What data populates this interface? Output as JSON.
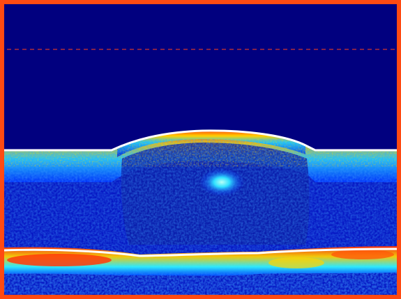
{
  "colors": {
    "background": "#01007f",
    "frame": "#ff4a12",
    "reference_line": "#d2352a",
    "boundary_line": "#ffffff",
    "hot_band": "#ff3b0c",
    "warm_band": "#ffd400",
    "mid_band": "#1ee0ff"
  }
}
